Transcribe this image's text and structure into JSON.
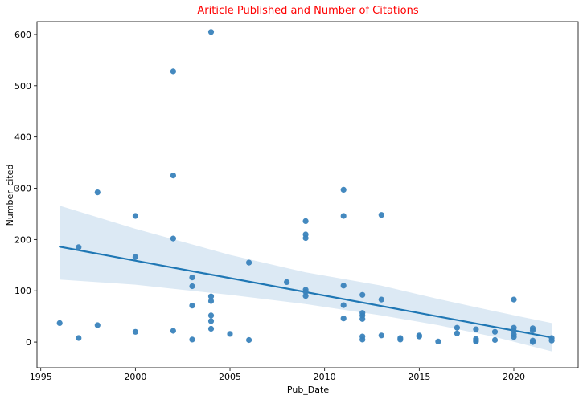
{
  "chart_data": {
    "type": "scatter",
    "title": "Ariticle Published and Number of Citations",
    "xlabel": "Pub_Date",
    "ylabel": "Number_cited",
    "xlim": [
      1994.8,
      2023.4
    ],
    "ylim": [
      -50,
      625
    ],
    "xticks": [
      "1995",
      "2000",
      "2005",
      "2010",
      "2015",
      "2020"
    ],
    "xtick_values": [
      1995,
      2000,
      2005,
      2010,
      2015,
      2020
    ],
    "yticks": [
      "0",
      "100",
      "200",
      "300",
      "400",
      "500",
      "600"
    ],
    "ytick_values": [
      0,
      100,
      200,
      300,
      400,
      500,
      600
    ],
    "grid": false,
    "colors": {
      "points": "#3a83bc",
      "line": "#1f77b4",
      "band": "#dce9f4",
      "title": "#ff0000"
    },
    "points": [
      [
        1996,
        37
      ],
      [
        1997,
        8
      ],
      [
        1997,
        185
      ],
      [
        1998,
        33
      ],
      [
        1998,
        292
      ],
      [
        2000,
        20
      ],
      [
        2000,
        166
      ],
      [
        2000,
        246
      ],
      [
        2002,
        22
      ],
      [
        2002,
        202
      ],
      [
        2002,
        325
      ],
      [
        2002,
        528
      ],
      [
        2003,
        5
      ],
      [
        2003,
        71
      ],
      [
        2003,
        109
      ],
      [
        2003,
        126
      ],
      [
        2004,
        26
      ],
      [
        2004,
        41
      ],
      [
        2004,
        52
      ],
      [
        2004,
        80
      ],
      [
        2004,
        89
      ],
      [
        2004,
        605
      ],
      [
        2005,
        16
      ],
      [
        2006,
        4
      ],
      [
        2006,
        155
      ],
      [
        2008,
        117
      ],
      [
        2009,
        90
      ],
      [
        2009,
        98
      ],
      [
        2009,
        102
      ],
      [
        2009,
        203
      ],
      [
        2009,
        210
      ],
      [
        2009,
        236
      ],
      [
        2011,
        46
      ],
      [
        2011,
        72
      ],
      [
        2011,
        110
      ],
      [
        2011,
        246
      ],
      [
        2011,
        297
      ],
      [
        2012,
        5
      ],
      [
        2012,
        11
      ],
      [
        2012,
        45
      ],
      [
        2012,
        52
      ],
      [
        2012,
        57
      ],
      [
        2012,
        92
      ],
      [
        2013,
        13
      ],
      [
        2013,
        83
      ],
      [
        2013,
        248
      ],
      [
        2014,
        5
      ],
      [
        2014,
        8
      ],
      [
        2015,
        11
      ],
      [
        2015,
        13
      ],
      [
        2016,
        1
      ],
      [
        2017,
        17
      ],
      [
        2017,
        28
      ],
      [
        2018,
        1
      ],
      [
        2018,
        3
      ],
      [
        2018,
        6
      ],
      [
        2018,
        25
      ],
      [
        2019,
        4
      ],
      [
        2019,
        20
      ],
      [
        2020,
        10
      ],
      [
        2020,
        15
      ],
      [
        2020,
        22
      ],
      [
        2020,
        28
      ],
      [
        2020,
        83
      ],
      [
        2021,
        0
      ],
      [
        2021,
        3
      ],
      [
        2021,
        23
      ],
      [
        2021,
        27
      ],
      [
        2022,
        3
      ],
      [
        2022,
        8
      ]
    ],
    "regression_line": {
      "x": [
        1996,
        2022
      ],
      "y": [
        186,
        9
      ]
    },
    "confidence_band": {
      "x": [
        1996,
        2000,
        2005,
        2009,
        2013,
        2016,
        2019,
        2022
      ],
      "lower": [
        122,
        112,
        92,
        74,
        52,
        33,
        10,
        -18
      ],
      "upper": [
        266,
        221,
        170,
        136,
        110,
        84,
        60,
        37
      ]
    }
  }
}
